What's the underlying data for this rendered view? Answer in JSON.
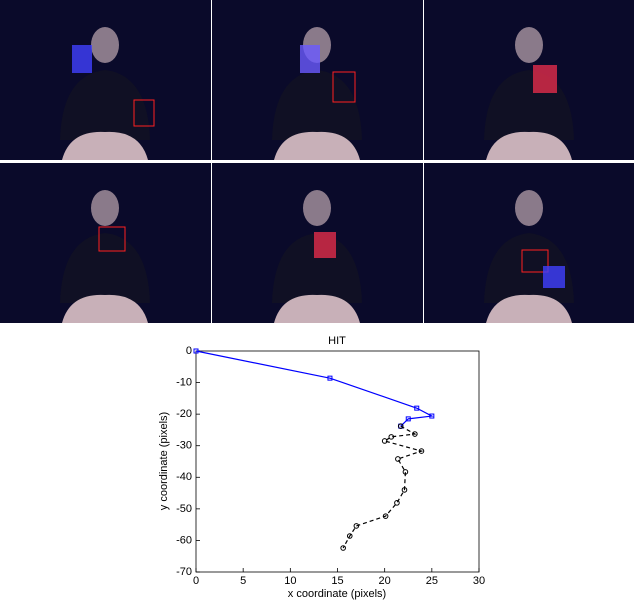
{
  "chart_data": {
    "type": "line",
    "title": "HIT",
    "x_label": "x coordinate (pixels)",
    "y_label": "y coordinate (pixels)",
    "xlim": [
      0,
      30
    ],
    "xticks": [
      0,
      5,
      10,
      15,
      20,
      25,
      30
    ],
    "ylim": [
      -70,
      0
    ],
    "yticks": [
      0,
      -10,
      -20,
      -30,
      -40,
      -50,
      -60,
      -70
    ],
    "series": [
      {
        "color": "#0000ff",
        "marker": "square",
        "dash": false,
        "x": [
          0,
          14.2,
          23.4,
          25.0,
          22.5,
          21.7
        ],
        "values": [
          0,
          -8.6,
          -18.1,
          -20.6,
          -21.5,
          -23.8
        ]
      },
      {
        "color": "#000000",
        "marker": "circle",
        "dash": true,
        "x": [
          21.7,
          23.2,
          20.7,
          20.0,
          23.9,
          21.4,
          22.2,
          22.1,
          21.3,
          20.1,
          17.0,
          16.3,
          15.6
        ],
        "values": [
          -23.8,
          -26.3,
          -27.2,
          -28.5,
          -31.7,
          -34.2,
          -38.3,
          -44.0,
          -48.1,
          -52.3,
          -55.4,
          -58.6,
          -62.4
        ]
      }
    ]
  }
}
